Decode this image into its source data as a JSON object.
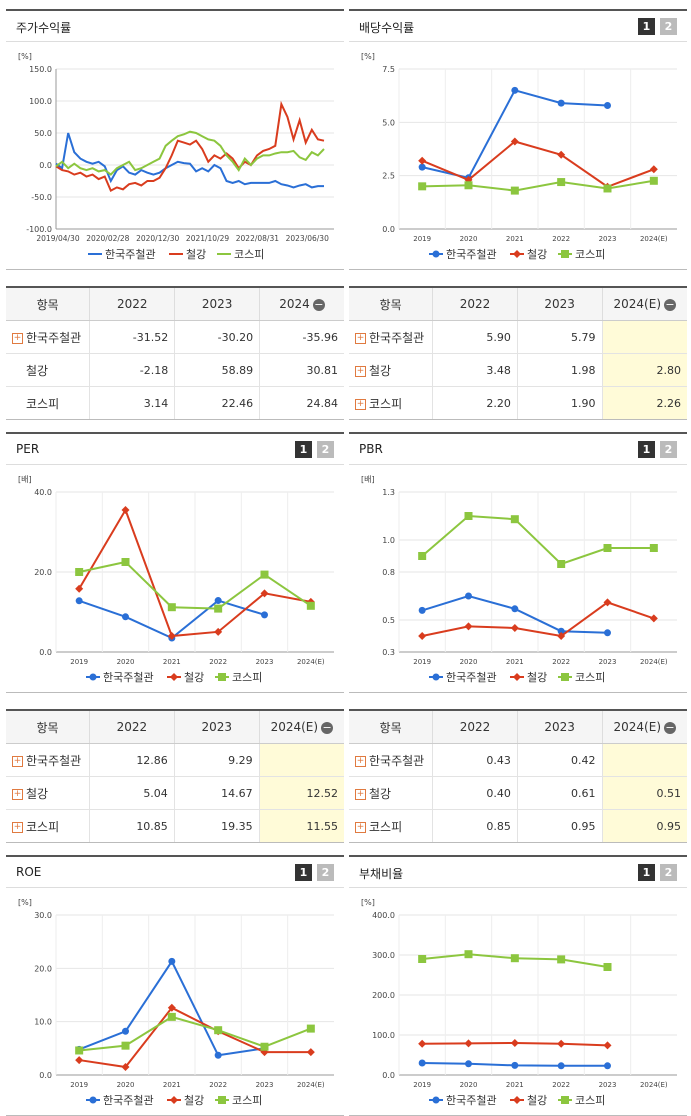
{
  "colors": {
    "korea_steel_pipe": "#2a6fd6",
    "steel": "#d93c1e",
    "kospi": "#8cc63f"
  },
  "charts": {
    "stock_return": {
      "title": "주가수익률",
      "unit": "[%]",
      "legend": [
        "한국주철관",
        "철강",
        "코스피"
      ]
    },
    "dividend_yield": {
      "title": "배당수익률",
      "unit": "[%]",
      "btn1": "1",
      "btn2": "2",
      "legend": [
        "한국주철관",
        "철강",
        "코스피"
      ]
    },
    "per": {
      "title": "PER",
      "unit": "[배]",
      "btn1": "1",
      "btn2": "2",
      "legend": [
        "한국주철관",
        "철강",
        "코스피"
      ]
    },
    "pbr": {
      "title": "PBR",
      "unit": "[배]",
      "btn1": "1",
      "btn2": "2",
      "legend": [
        "한국주철관",
        "철강",
        "코스피"
      ]
    },
    "roe": {
      "title": "ROE",
      "unit": "[%]",
      "btn1": "1",
      "btn2": "2",
      "legend": [
        "한국주철관",
        "철강",
        "코스피"
      ]
    },
    "debt_ratio": {
      "title": "부채비율",
      "unit": "[%]",
      "btn1": "1",
      "btn2": "2",
      "legend": [
        "한국주철관",
        "철강",
        "코스피"
      ]
    }
  },
  "tables": {
    "stock_return": {
      "headers": [
        "항목",
        "2022",
        "2023",
        "2024"
      ],
      "rows": [
        {
          "name": "한국주철관",
          "plus": true,
          "values": [
            "-31.52",
            "-30.20",
            "-35.96"
          ]
        },
        {
          "name": "철강",
          "plus": false,
          "values": [
            "-2.18",
            "58.89",
            "30.81"
          ]
        },
        {
          "name": "코스피",
          "plus": false,
          "values": [
            "3.14",
            "22.46",
            "24.84"
          ]
        }
      ]
    },
    "dividend_yield": {
      "headers": [
        "항목",
        "2022",
        "2023",
        "2024(E)"
      ],
      "rows": [
        {
          "name": "한국주철관",
          "plus": true,
          "values": [
            "5.90",
            "5.79",
            ""
          ]
        },
        {
          "name": "철강",
          "plus": true,
          "values": [
            "3.48",
            "1.98",
            "2.80"
          ]
        },
        {
          "name": "코스피",
          "plus": true,
          "values": [
            "2.20",
            "1.90",
            "2.26"
          ]
        }
      ]
    },
    "per": {
      "headers": [
        "항목",
        "2022",
        "2023",
        "2024(E)"
      ],
      "rows": [
        {
          "name": "한국주철관",
          "plus": true,
          "values": [
            "12.86",
            "9.29",
            ""
          ]
        },
        {
          "name": "철강",
          "plus": true,
          "values": [
            "5.04",
            "14.67",
            "12.52"
          ]
        },
        {
          "name": "코스피",
          "plus": true,
          "values": [
            "10.85",
            "19.35",
            "11.55"
          ]
        }
      ]
    },
    "pbr": {
      "headers": [
        "항목",
        "2022",
        "2023",
        "2024(E)"
      ],
      "rows": [
        {
          "name": "한국주철관",
          "plus": true,
          "values": [
            "0.43",
            "0.42",
            ""
          ]
        },
        {
          "name": "철강",
          "plus": true,
          "values": [
            "0.40",
            "0.61",
            "0.51"
          ]
        },
        {
          "name": "코스피",
          "plus": true,
          "values": [
            "0.85",
            "0.95",
            "0.95"
          ]
        }
      ]
    }
  },
  "chart_data": [
    {
      "type": "line",
      "title": "주가수익률",
      "ylabel": "[%]",
      "ylim": [
        -100,
        150
      ],
      "yticks": [
        "150.0",
        "100.0",
        "50.0",
        "0.0",
        "-50.0",
        "-100.0"
      ],
      "x_labels": [
        "2019/04/30",
        "2020/02/28",
        "2020/12/30",
        "2021/10/29",
        "2022/08/31",
        "2023/06/30"
      ],
      "series": [
        {
          "name": "한국주철관",
          "values": [
            2,
            -5,
            50,
            20,
            10,
            5,
            2,
            5,
            -2,
            -25,
            -8,
            -2,
            -12,
            -15,
            -8,
            -12,
            -15,
            -12,
            -5,
            0,
            5,
            3,
            2,
            -10,
            -5,
            -10,
            0,
            -5,
            -25,
            -28,
            -25,
            -30,
            -28,
            -28,
            -28,
            -28,
            -25,
            -30,
            -32,
            -35,
            -32,
            -30,
            -35,
            -33,
            -33
          ]
        },
        {
          "name": "철강",
          "values": [
            -2,
            -8,
            -10,
            -15,
            -12,
            -18,
            -15,
            -22,
            -18,
            -40,
            -35,
            -38,
            -30,
            -28,
            -32,
            -25,
            -25,
            -20,
            -5,
            15,
            38,
            35,
            32,
            38,
            25,
            5,
            15,
            10,
            18,
            10,
            -5,
            5,
            0,
            15,
            22,
            25,
            30,
            95,
            75,
            40,
            70,
            35,
            55,
            40,
            38
          ]
        },
        {
          "name": "코스피",
          "values": [
            -2,
            5,
            -5,
            2,
            -5,
            -8,
            -5,
            -10,
            -8,
            -15,
            -5,
            0,
            5,
            -8,
            -5,
            0,
            5,
            10,
            30,
            38,
            45,
            48,
            52,
            50,
            45,
            40,
            38,
            30,
            15,
            5,
            -8,
            10,
            0,
            10,
            15,
            15,
            18,
            20,
            20,
            22,
            12,
            8,
            20,
            15,
            25
          ]
        }
      ]
    },
    {
      "type": "line",
      "title": "배당수익률",
      "ylabel": "[%]",
      "ylim": [
        0,
        7.5
      ],
      "yticks": [
        "7.5",
        "5.0",
        "2.5",
        "0.0"
      ],
      "categories": [
        "2019",
        "2020",
        "2021",
        "2022",
        "2023",
        "2024(E)"
      ],
      "series": [
        {
          "name": "한국주철관",
          "values": [
            2.9,
            2.4,
            6.5,
            5.9,
            5.79,
            null
          ]
        },
        {
          "name": "철강",
          "values": [
            3.2,
            2.3,
            4.1,
            3.48,
            1.98,
            2.8
          ]
        },
        {
          "name": "코스피",
          "values": [
            2.0,
            2.05,
            1.8,
            2.2,
            1.9,
            2.26
          ]
        }
      ]
    },
    {
      "type": "line",
      "title": "PER",
      "ylabel": "[배]",
      "ylim": [
        0,
        40
      ],
      "yticks": [
        "40.0",
        "20.0",
        "0.0"
      ],
      "categories": [
        "2019",
        "2020",
        "2021",
        "2022",
        "2023",
        "2024(E)"
      ],
      "series": [
        {
          "name": "한국주철관",
          "values": [
            12.8,
            8.8,
            3.5,
            12.86,
            9.29,
            null
          ]
        },
        {
          "name": "철강",
          "values": [
            15.8,
            35.5,
            4.0,
            5.04,
            14.67,
            12.52
          ]
        },
        {
          "name": "코스피",
          "values": [
            20.0,
            22.5,
            11.2,
            10.85,
            19.35,
            11.55
          ]
        }
      ]
    },
    {
      "type": "line",
      "title": "PBR",
      "ylabel": "[배]",
      "ylim": [
        0.3,
        1.3
      ],
      "yticks": [
        "1.3",
        "1.0",
        "0.8",
        "0.5",
        "0.3"
      ],
      "categories": [
        "2019",
        "2020",
        "2021",
        "2022",
        "2023",
        "2024(E)"
      ],
      "series": [
        {
          "name": "한국주철관",
          "values": [
            0.56,
            0.65,
            0.57,
            0.43,
            0.42,
            null
          ]
        },
        {
          "name": "철강",
          "values": [
            0.4,
            0.46,
            0.45,
            0.4,
            0.61,
            0.51
          ]
        },
        {
          "name": "코스피",
          "values": [
            0.9,
            1.15,
            1.13,
            0.85,
            0.95,
            0.95
          ]
        }
      ]
    },
    {
      "type": "line",
      "title": "ROE",
      "ylabel": "[%]",
      "ylim": [
        0,
        30
      ],
      "yticks": [
        "30.0",
        "20.0",
        "10.0",
        "0.0"
      ],
      "categories": [
        "2019",
        "2020",
        "2021",
        "2022",
        "2023",
        "2024(E)"
      ],
      "series": [
        {
          "name": "한국주철관",
          "values": [
            4.8,
            8.2,
            21.3,
            3.7,
            5.0,
            null
          ]
        },
        {
          "name": "철강",
          "values": [
            2.8,
            1.5,
            12.6,
            8.2,
            4.3,
            4.3
          ]
        },
        {
          "name": "코스피",
          "values": [
            4.6,
            5.5,
            10.9,
            8.4,
            5.3,
            8.7
          ]
        }
      ]
    },
    {
      "type": "line",
      "title": "부채비율",
      "ylabel": "[%]",
      "ylim": [
        0,
        400
      ],
      "yticks": [
        "400.0",
        "300.0",
        "200.0",
        "100.0",
        "0.0"
      ],
      "categories": [
        "2019",
        "2020",
        "2021",
        "2022",
        "2023",
        "2024(E)"
      ],
      "series": [
        {
          "name": "한국주철관",
          "values": [
            30,
            28,
            24,
            23,
            23,
            null
          ]
        },
        {
          "name": "철강",
          "values": [
            78,
            79,
            80,
            78,
            74,
            null
          ]
        },
        {
          "name": "코스피",
          "values": [
            290,
            302,
            292,
            289,
            270,
            null
          ]
        }
      ]
    }
  ]
}
